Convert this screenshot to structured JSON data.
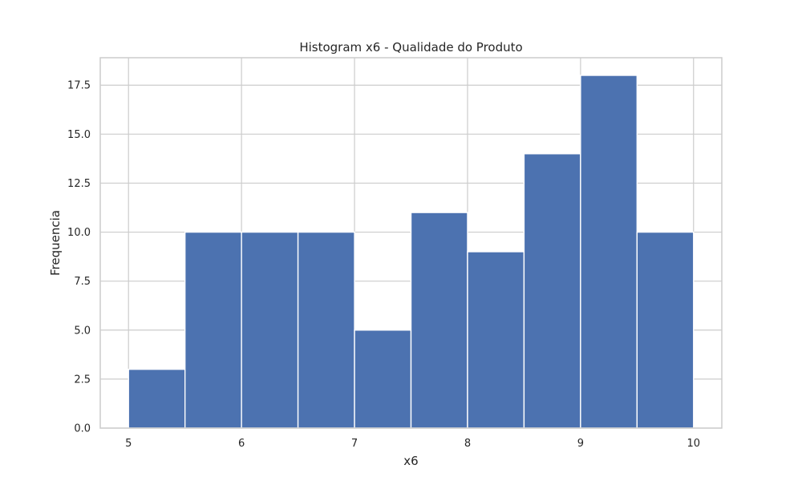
{
  "chart_data": {
    "type": "bar",
    "title": "Histogram x6 - Qualidade do Produto",
    "xlabel": "x6",
    "ylabel": "Frequencia",
    "bin_edges": [
      5.0,
      5.5,
      6.0,
      6.5,
      7.0,
      7.5,
      8.0,
      8.5,
      9.0,
      9.5,
      10.0
    ],
    "values": [
      3,
      10,
      10,
      10,
      5,
      11,
      9,
      14,
      18,
      10
    ],
    "xlim": [
      4.75,
      10.25
    ],
    "ylim": [
      0,
      18.9
    ],
    "x_ticks": [
      5,
      6,
      7,
      8,
      9,
      10
    ],
    "x_tick_labels": [
      "5",
      "6",
      "7",
      "8",
      "9",
      "10"
    ],
    "y_ticks": [
      0,
      2.5,
      5,
      7.5,
      10,
      12.5,
      15,
      17.5
    ],
    "y_tick_labels": [
      "0.0",
      "2.5",
      "5.0",
      "7.5",
      "10.0",
      "12.5",
      "15.0",
      "17.5"
    ],
    "grid": true,
    "bar_color": "#4c72b0",
    "legend": "none"
  }
}
